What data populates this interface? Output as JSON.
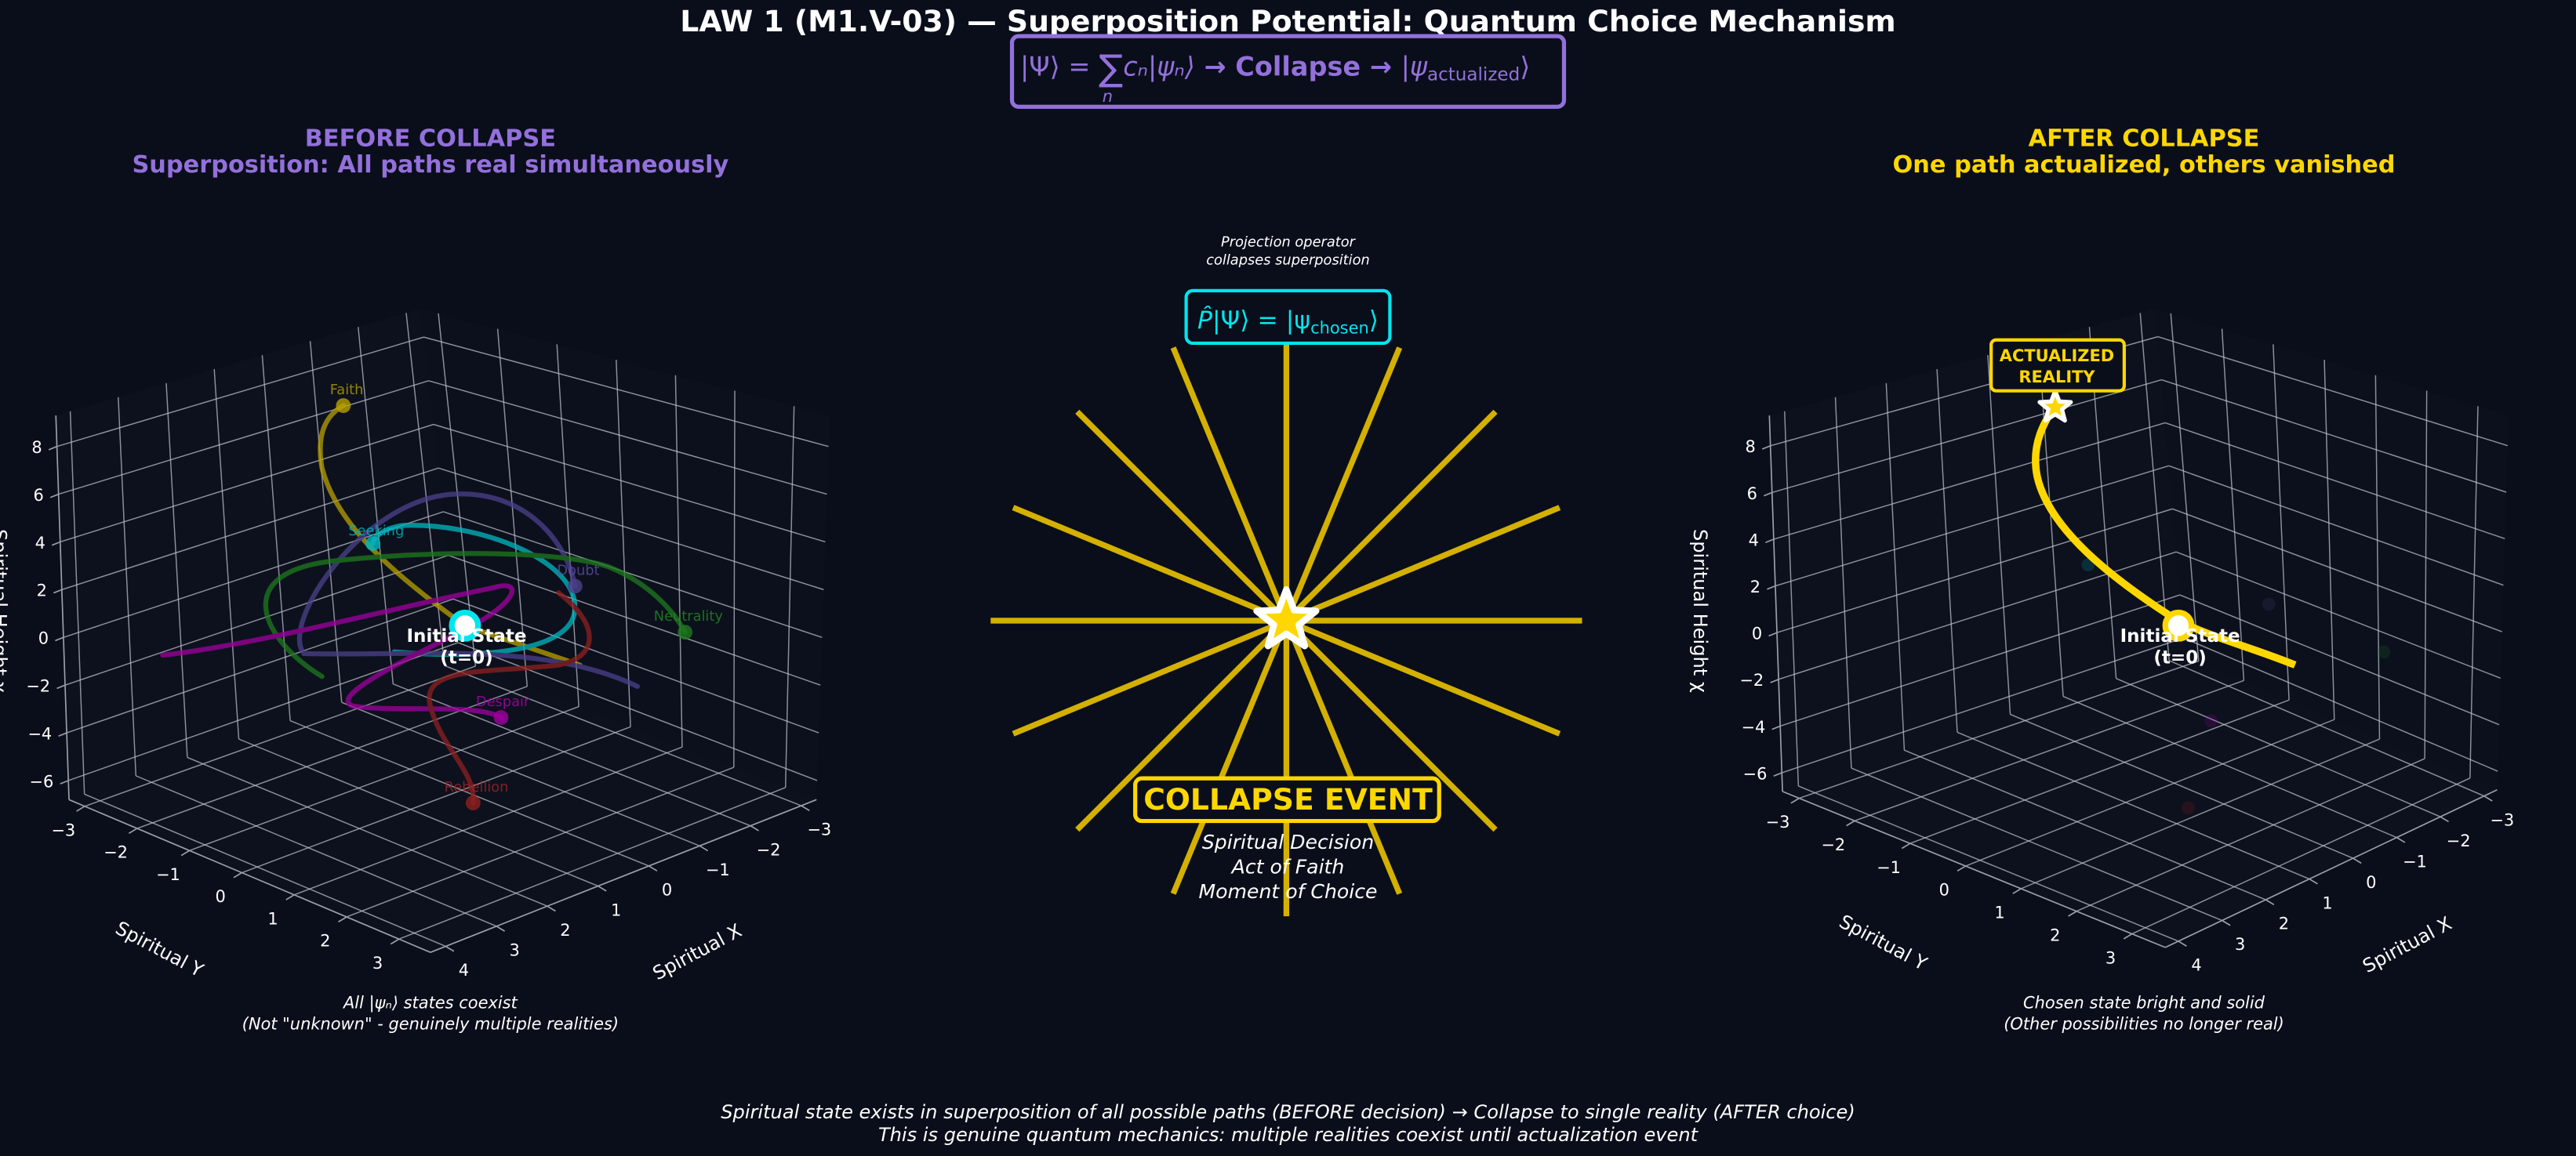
{
  "title": "LAW 1 (M1.V-03) — Superposition Potential: Quantum Choice Mechanism",
  "formula": {
    "prefix": "|Ψ⟩ = ",
    "sum": "∑",
    "sum_index": "n",
    "term": "cₙ|ψₙ⟩",
    "arrow1": " → ",
    "collapse": "Collapse",
    "arrow2": " → ",
    "ket_open": "|ψ",
    "ket_sub": "actualized",
    "ket_close": "⟩"
  },
  "colors": {
    "background": "#0a0e1a",
    "purple": "#9370DB",
    "gold": "#FFD700",
    "ray": "#D4B000",
    "cyan": "#00E5EE"
  },
  "axes": {
    "x_label": "Spiritual X",
    "y_label": "Spiritual Y",
    "z_label": "Spiritual Height χ",
    "x_ticks": [
      "−3",
      "−2",
      "−1",
      "0",
      "1",
      "2",
      "3",
      "4"
    ],
    "y_ticks": [
      "−3",
      "−2",
      "−1",
      "0",
      "1",
      "2",
      "3"
    ],
    "z_ticks": [
      "−6",
      "−4",
      "−2",
      "0",
      "2",
      "4",
      "6",
      "8"
    ]
  },
  "before": {
    "title": "BEFORE COLLAPSE",
    "subtitle": "Superposition: All paths real simultaneously",
    "states": [
      {
        "label": "Faith",
        "color": "#B8A000"
      },
      {
        "label": "Seeking",
        "color": "#00B8C0"
      },
      {
        "label": "Doubt",
        "color": "#5B4FA8"
      },
      {
        "label": "Neutrality",
        "color": "#228B22"
      },
      {
        "label": "Despair",
        "color": "#B000B0"
      },
      {
        "label": "Rebellion",
        "color": "#A02424"
      }
    ],
    "initial_line1": "Initial State",
    "initial_line2": "(t=0)",
    "caption_line1": "All |ψₙ⟩ states coexist",
    "caption_line2": "(Not \"unknown\" - genuinely multiple realities)"
  },
  "center": {
    "operator_note_line1": "Projection operator",
    "operator_note_line2": "collapses superposition",
    "operator": {
      "hat_p": "P̂",
      "mid": "|Ψ⟩ = |ψ",
      "sub": "chosen",
      "close": "⟩"
    },
    "event_label": "COLLAPSE EVENT",
    "event_lines": [
      "Spiritual Decision",
      "Act of Faith",
      "Moment of Choice"
    ]
  },
  "after": {
    "title": "AFTER COLLAPSE",
    "subtitle": "One path actualized, others vanished",
    "actualized_line1": "ACTUALIZED",
    "actualized_line2": "REALITY",
    "initial_line1": "Initial State",
    "initial_line2": "(t=0)",
    "caption_line1": "Chosen state bright and solid",
    "caption_line2": "(Other possibilities no longer real)"
  },
  "footer": {
    "line1": "Spiritual state exists in superposition of all possible paths (BEFORE decision) → Collapse to single reality (AFTER choice)",
    "line2": "This is genuine quantum mechanics: multiple realities coexist until actualization event"
  }
}
